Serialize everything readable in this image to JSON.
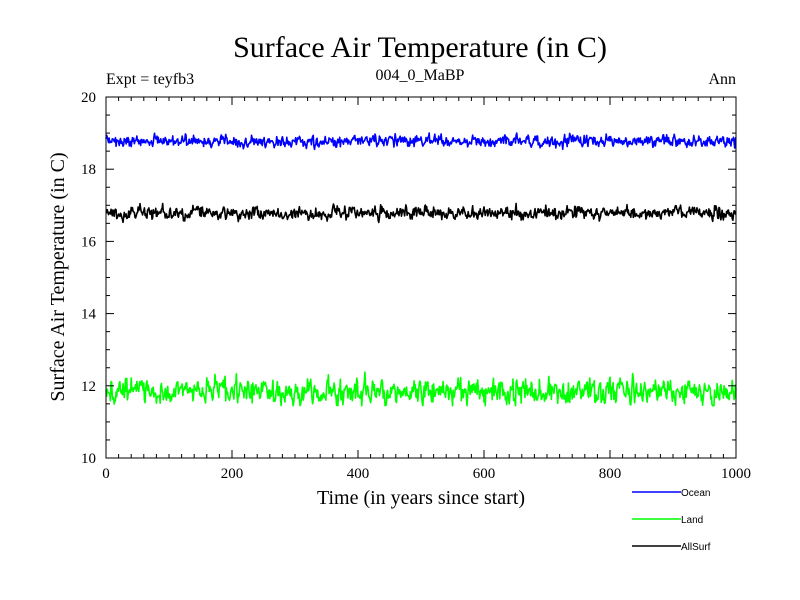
{
  "chart_data": {
    "type": "line",
    "title": "Surface Air Temperature (in C)",
    "subtitle_left": "Expt = teyfb3",
    "subtitle_center": "004_0_MaBP",
    "subtitle_right": "Ann",
    "xlabel": "Time (in years since start)",
    "ylabel": "Surface Air Temperature (in C)",
    "xlim": [
      0,
      1000
    ],
    "ylim": [
      10,
      20
    ],
    "xticks": [
      0,
      200,
      400,
      600,
      800,
      1000
    ],
    "xtick_labels": [
      "0",
      "200",
      "400",
      "600",
      "800",
      "1000"
    ],
    "yticks": [
      10,
      12,
      14,
      16,
      18,
      20
    ],
    "ytick_labels": [
      "10",
      "12",
      "14",
      "16",
      "18",
      "20"
    ],
    "x_minor_step": 20,
    "y_minor_step": 0.5,
    "grid": false,
    "legend_position": "bottom-right",
    "series": [
      {
        "name": "Ocean",
        "color": "#0000ff",
        "mean": 18.78,
        "noise_sd": 0.08,
        "min": 18.55,
        "max": 19.0
      },
      {
        "name": "Land",
        "color": "#00ff00",
        "mean": 11.85,
        "noise_sd": 0.17,
        "min": 11.45,
        "max": 12.4
      },
      {
        "name": "AllSurf",
        "color": "#000000",
        "mean": 16.78,
        "noise_sd": 0.09,
        "min": 16.5,
        "max": 17.05
      }
    ]
  }
}
